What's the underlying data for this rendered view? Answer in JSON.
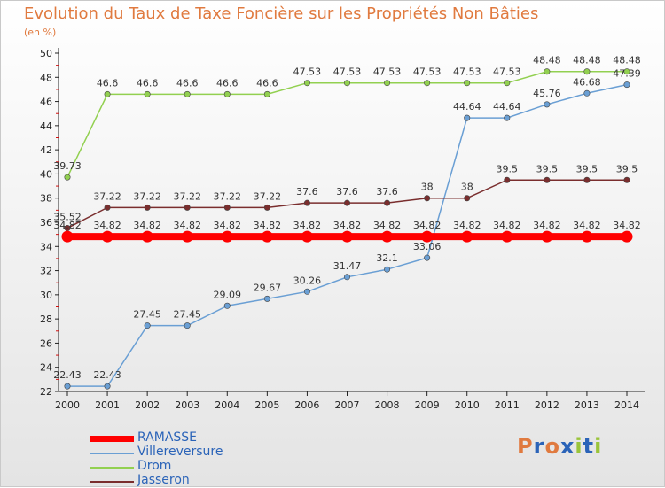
{
  "title": "Evolution du Taux de Taxe Foncière sur les Propriétés Non Bâties",
  "unit": "(en %)",
  "logo": {
    "text": "Proxiti",
    "letters": [
      "P",
      "r",
      "o",
      "x",
      "i",
      "t",
      "i"
    ],
    "colors": [
      "#e07a3f",
      "#2a63b8",
      "#e07a3f",
      "#2a63b8",
      "#9ac43a",
      "#2a63b8",
      "#9ac43a"
    ]
  },
  "chart_data": {
    "type": "line",
    "title": "Evolution du Taux de Taxe Foncière sur les Propriétés Non Bâties",
    "ylabel": "(en %)",
    "xlabel": "",
    "ylim": [
      22,
      50
    ],
    "yticks": [
      22,
      24,
      26,
      28,
      30,
      32,
      34,
      36,
      38,
      40,
      42,
      44,
      46,
      48,
      50
    ],
    "categories": [
      "2000",
      "2001",
      "2002",
      "2003",
      "2004",
      "2005",
      "2006",
      "2007",
      "2008",
      "2009",
      "2010",
      "2011",
      "2012",
      "2013",
      "2014"
    ],
    "series": [
      {
        "name": "RAMASSE",
        "color": "#ff0000",
        "thick": true,
        "values": [
          34.82,
          34.82,
          34.82,
          34.82,
          34.82,
          34.82,
          34.82,
          34.82,
          34.82,
          34.82,
          34.82,
          34.82,
          34.82,
          34.82,
          34.82
        ],
        "labels": [
          "34.82",
          "34.82",
          "34.82",
          "34.82",
          "34.82",
          "34.82",
          "34.82",
          "34.82",
          "34.82",
          "34.82",
          "34.82",
          "34.82",
          "34.82",
          "34.82",
          "34.82"
        ]
      },
      {
        "name": "Villereversure",
        "color": "#6a9fd4",
        "thick": false,
        "values": [
          22.43,
          22.43,
          27.45,
          27.45,
          29.09,
          29.67,
          30.26,
          31.47,
          32.1,
          33.06,
          44.64,
          44.64,
          45.76,
          46.68,
          47.39
        ],
        "labels": [
          "22.43",
          "22.43",
          "27.45",
          "27.45",
          "29.09",
          "29.67",
          "30.26",
          "31.47",
          "32.1",
          "33.06",
          "44.64",
          "44.64",
          "45.76",
          "46.68",
          "47.39"
        ]
      },
      {
        "name": "Drom",
        "color": "#92d050",
        "thick": false,
        "values": [
          39.73,
          46.6,
          46.6,
          46.6,
          46.6,
          46.6,
          47.53,
          47.53,
          47.53,
          47.53,
          47.53,
          47.53,
          48.48,
          48.48,
          48.48
        ],
        "labels": [
          "39.73",
          "46.6",
          "46.6",
          "46.6",
          "46.6",
          "46.6",
          "47.53",
          "47.53",
          "47.53",
          "47.53",
          "47.53",
          "47.53",
          "48.48",
          "48.48",
          "48.48"
        ]
      },
      {
        "name": "Jasseron",
        "color": "#7a2e2e",
        "thick": false,
        "values": [
          35.52,
          37.22,
          37.22,
          37.22,
          37.22,
          37.22,
          37.6,
          37.6,
          37.6,
          38,
          38,
          39.5,
          39.5,
          39.5,
          39.5
        ],
        "labels": [
          "35.52",
          "37.22",
          "37.22",
          "37.22",
          "37.22",
          "37.22",
          "37.6",
          "37.6",
          "37.6",
          "38",
          "38",
          "39.5",
          "39.5",
          "39.5",
          "39.5"
        ]
      }
    ],
    "legend_placement": "bottom-left",
    "grid": false
  }
}
